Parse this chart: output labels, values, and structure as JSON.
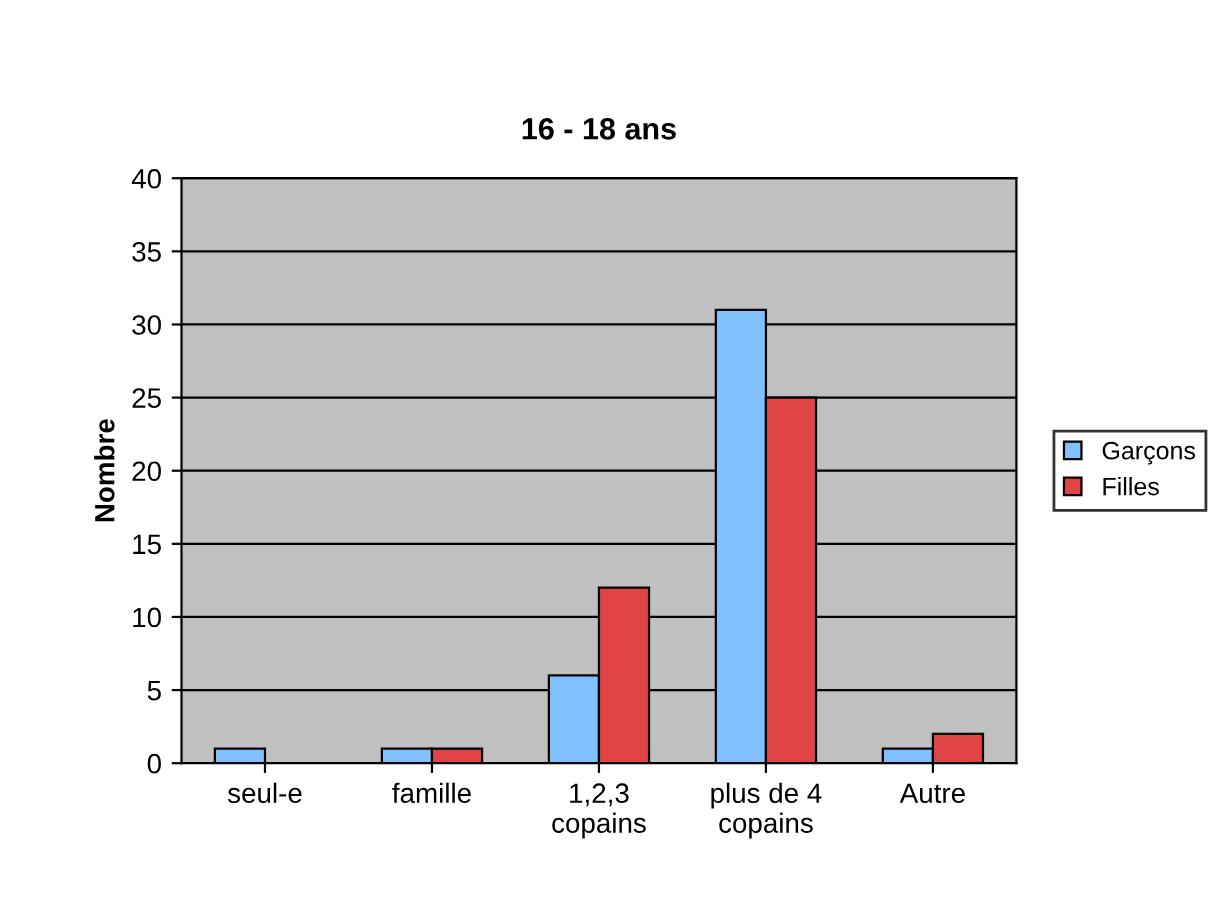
{
  "chart_data": {
    "type": "bar",
    "title": "16 - 18 ans",
    "ylabel": "Nombre",
    "categories": [
      "seul-e",
      "famille",
      "1,2,3\ncopains",
      "plus de 4\ncopains",
      "Autre"
    ],
    "series": [
      {
        "name": "Garçons",
        "color": "#80c0ff",
        "values": [
          1,
          1,
          6,
          31,
          1
        ]
      },
      {
        "name": "Filles",
        "color": "#e04444",
        "values": [
          null,
          1,
          12,
          25,
          2
        ]
      }
    ],
    "ylim": [
      0,
      40
    ],
    "yticks": [
      0,
      5,
      10,
      15,
      20,
      25,
      30,
      35,
      40
    ],
    "grid": "y",
    "legend": "right"
  }
}
